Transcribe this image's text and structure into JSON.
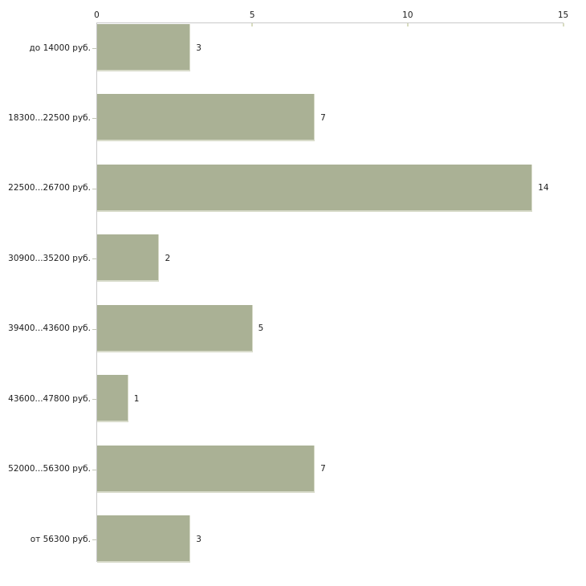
{
  "chart_data": {
    "type": "bar",
    "orientation": "horizontal",
    "title": "",
    "xlabel": "",
    "ylabel": "",
    "xlim": [
      0,
      15
    ],
    "grid": "off",
    "legend": "none",
    "axis_position": "top",
    "categories": [
      "до 14000 руб.",
      "18300...22500 руб.",
      "22500...26700 руб.",
      "30900...35200 руб.",
      "39400...43600 руб.",
      "43600...47800 руб.",
      "52000...56300 руб.",
      "от 56300 руб."
    ],
    "values": [
      3,
      7,
      14,
      2,
      5,
      1,
      7,
      3
    ],
    "x_ticks": [
      {
        "label": "0",
        "value": 0
      },
      {
        "label": "5",
        "value": 5
      },
      {
        "label": "10",
        "value": 10
      },
      {
        "label": "15",
        "value": 15
      }
    ],
    "colors": {
      "bar_fill": "#aab195",
      "bar_edge_light": "#d8dbca",
      "axis_line": "#c9c9c9",
      "x_tick_mark": "#d8dcc0",
      "category_tick_mark": "#c2c6b6",
      "text": "#1d1d1d",
      "background": "#ffffff"
    }
  }
}
